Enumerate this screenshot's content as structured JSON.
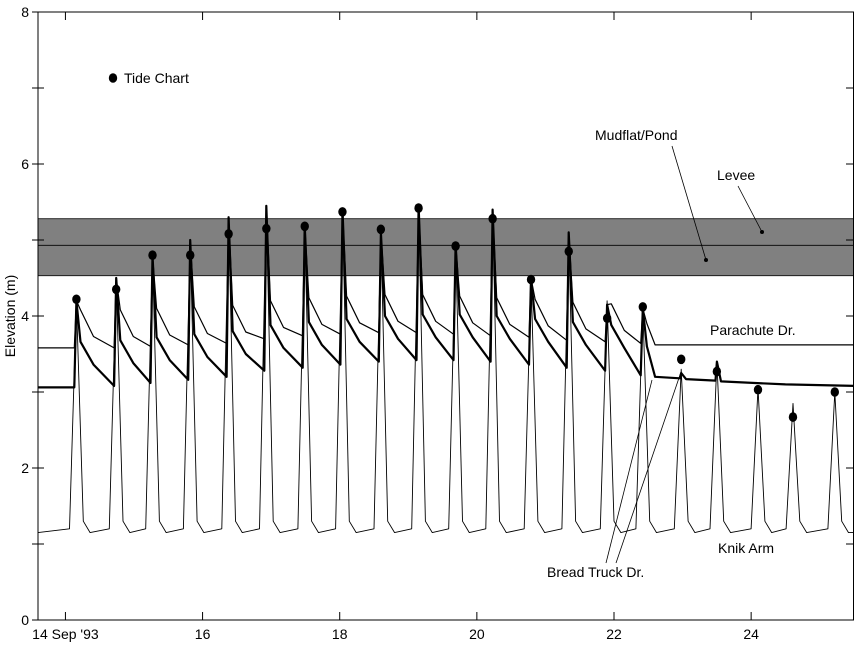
{
  "chart_data": {
    "type": "line",
    "ylabel": "Elevation (m)",
    "xlim": [
      13.6,
      25.5
    ],
    "xticks": [
      {
        "value": 14,
        "label": "14 Sep '93"
      },
      16,
      18,
      20,
      22,
      24
    ],
    "ylim": [
      0,
      8
    ],
    "yticks": [
      0,
      2,
      4,
      6,
      8
    ],
    "yminor": [
      1,
      3,
      5,
      7
    ],
    "legend": "upper left",
    "band": [
      4.53,
      5.28
    ],
    "band_line": 4.93,
    "band_color": "#808080",
    "annotations": [
      "Mudflat/Pond",
      "Levee",
      "Parachute Dr.",
      "Knik Arm",
      "Bread Truck Dr."
    ],
    "series": [
      {
        "name": "Knik Arm",
        "kind": "line",
        "color": "#000000",
        "width": 0.9,
        "x": [
          13.6,
          14.06,
          14.16,
          14.26,
          14.36,
          14.64,
          14.74,
          14.84,
          14.94,
          15.17,
          15.27,
          15.37,
          15.47,
          15.72,
          15.82,
          15.92,
          16.02,
          16.28,
          16.38,
          16.48,
          16.58,
          16.83,
          16.93,
          17.03,
          17.13,
          17.39,
          17.49,
          17.59,
          17.69,
          17.94,
          18.04,
          18.14,
          18.24,
          18.5,
          18.6,
          18.7,
          18.8,
          19.05,
          19.15,
          19.25,
          19.35,
          19.59,
          19.69,
          19.79,
          19.89,
          20.13,
          20.23,
          20.33,
          20.43,
          20.69,
          20.79,
          20.89,
          20.99,
          21.24,
          21.34,
          21.44,
          21.54,
          21.8,
          21.9,
          22.0,
          22.1,
          22.32,
          22.42,
          22.52,
          22.62,
          22.88,
          22.98,
          23.08,
          23.18,
          23.4,
          23.5,
          23.6,
          23.7,
          24.0,
          24.1,
          24.2,
          24.3,
          24.51,
          24.61,
          24.71,
          24.81,
          25.12,
          25.22,
          25.32,
          25.42,
          25.5
        ],
        "values": [
          1.15,
          1.2,
          4.2,
          1.3,
          1.15,
          1.2,
          4.5,
          1.3,
          1.15,
          1.2,
          4.8,
          1.3,
          1.15,
          1.2,
          5.0,
          1.3,
          1.15,
          1.2,
          5.3,
          1.3,
          1.15,
          1.2,
          5.45,
          1.3,
          1.15,
          1.2,
          5.2,
          1.3,
          1.15,
          1.2,
          5.4,
          1.3,
          1.15,
          1.2,
          5.1,
          1.3,
          1.15,
          1.2,
          5.45,
          1.3,
          1.15,
          1.2,
          4.95,
          1.3,
          1.15,
          1.2,
          5.4,
          1.3,
          1.15,
          1.2,
          4.5,
          1.3,
          1.15,
          1.2,
          5.1,
          1.3,
          1.15,
          1.2,
          4.2,
          1.3,
          1.15,
          1.2,
          4.1,
          1.3,
          1.15,
          1.2,
          3.3,
          1.3,
          1.15,
          1.2,
          3.4,
          1.3,
          1.15,
          1.2,
          3.05,
          1.3,
          1.15,
          1.2,
          2.85,
          1.3,
          1.15,
          1.2,
          3.0,
          1.3,
          1.15,
          1.15
        ]
      },
      {
        "name": "Parachute Dr.",
        "kind": "line",
        "color": "#000000",
        "width": 1.2,
        "x": [
          13.6,
          14.13,
          14.16,
          14.22,
          14.41,
          14.71,
          14.74,
          14.8,
          14.99,
          15.24,
          15.27,
          15.33,
          15.52,
          15.79,
          15.82,
          15.88,
          16.07,
          16.35,
          16.38,
          16.44,
          16.63,
          16.9,
          16.93,
          16.99,
          17.18,
          17.46,
          17.49,
          17.55,
          17.74,
          18.01,
          18.04,
          18.1,
          18.29,
          18.57,
          18.6,
          18.66,
          18.85,
          19.12,
          19.15,
          19.21,
          19.4,
          19.66,
          19.69,
          19.75,
          19.94,
          20.2,
          20.23,
          20.29,
          20.48,
          20.76,
          20.79,
          20.85,
          21.04,
          21.31,
          21.34,
          21.4,
          21.59,
          21.87,
          21.9,
          21.96,
          22.15,
          22.39,
          22.42,
          22.48,
          22.6,
          25.5
        ],
        "values": [
          3.58,
          3.58,
          4.2,
          4.08,
          3.73,
          3.58,
          4.5,
          4.08,
          3.73,
          3.6,
          4.8,
          4.1,
          3.75,
          3.62,
          5.0,
          4.12,
          3.77,
          3.64,
          5.3,
          4.14,
          3.79,
          3.7,
          5.45,
          4.2,
          3.85,
          3.74,
          5.2,
          4.24,
          3.89,
          3.76,
          5.4,
          4.26,
          3.91,
          3.78,
          5.1,
          4.28,
          3.93,
          3.78,
          5.45,
          4.28,
          3.93,
          3.76,
          4.95,
          4.26,
          3.91,
          3.74,
          5.4,
          4.24,
          3.89,
          3.72,
          4.5,
          4.22,
          3.87,
          3.68,
          5.1,
          4.18,
          3.83,
          3.66,
          4.15,
          4.16,
          3.81,
          3.64,
          4.1,
          3.9,
          3.62,
          3.62
        ]
      },
      {
        "name": "Bread Truck Dr.",
        "kind": "line",
        "color": "#000000",
        "width": 2.2,
        "x": [
          13.6,
          14.13,
          14.16,
          14.22,
          14.41,
          14.71,
          14.74,
          14.8,
          14.99,
          15.24,
          15.27,
          15.33,
          15.52,
          15.79,
          15.82,
          15.88,
          16.07,
          16.35,
          16.38,
          16.44,
          16.63,
          16.9,
          16.93,
          16.99,
          17.18,
          17.46,
          17.49,
          17.55,
          17.74,
          18.01,
          18.04,
          18.1,
          18.29,
          18.57,
          18.6,
          18.66,
          18.85,
          19.12,
          19.15,
          19.21,
          19.4,
          19.66,
          19.69,
          19.75,
          19.94,
          20.2,
          20.23,
          20.29,
          20.48,
          20.76,
          20.79,
          20.85,
          21.04,
          21.31,
          21.34,
          21.4,
          21.59,
          21.87,
          21.9,
          21.96,
          22.15,
          22.39,
          22.42,
          22.48,
          22.6,
          22.96,
          22.98,
          23.05,
          23.48,
          23.5,
          23.56,
          24.5,
          25.5
        ],
        "values": [
          3.06,
          3.06,
          4.2,
          3.66,
          3.36,
          3.08,
          4.5,
          3.68,
          3.38,
          3.12,
          4.8,
          3.72,
          3.42,
          3.16,
          5.0,
          3.76,
          3.46,
          3.2,
          5.3,
          3.8,
          3.5,
          3.28,
          5.45,
          3.88,
          3.58,
          3.32,
          5.2,
          3.92,
          3.62,
          3.36,
          5.4,
          3.96,
          3.66,
          3.4,
          5.1,
          4.0,
          3.7,
          3.42,
          5.45,
          4.02,
          3.72,
          3.42,
          4.95,
          4.02,
          3.72,
          3.4,
          5.4,
          4.0,
          3.7,
          3.36,
          4.5,
          3.96,
          3.66,
          3.32,
          5.1,
          3.92,
          3.62,
          3.28,
          4.15,
          3.88,
          3.58,
          3.22,
          4.1,
          3.6,
          3.2,
          3.18,
          3.25,
          3.17,
          3.15,
          3.4,
          3.14,
          3.1,
          3.08
        ]
      },
      {
        "name": "Tide Chart",
        "kind": "scatter",
        "color": "#000000",
        "x": [
          14.16,
          14.74,
          15.27,
          15.82,
          16.38,
          16.93,
          17.49,
          18.04,
          18.6,
          19.15,
          19.69,
          20.23,
          20.79,
          21.34,
          21.9,
          22.42,
          22.98,
          23.5,
          24.1,
          24.61,
          25.22
        ],
        "values": [
          4.22,
          4.35,
          4.8,
          4.8,
          5.08,
          5.15,
          5.18,
          5.37,
          5.14,
          5.42,
          4.92,
          5.28,
          4.48,
          4.85,
          3.97,
          4.12,
          3.43,
          3.27,
          3.03,
          2.67,
          3.0
        ]
      }
    ]
  }
}
